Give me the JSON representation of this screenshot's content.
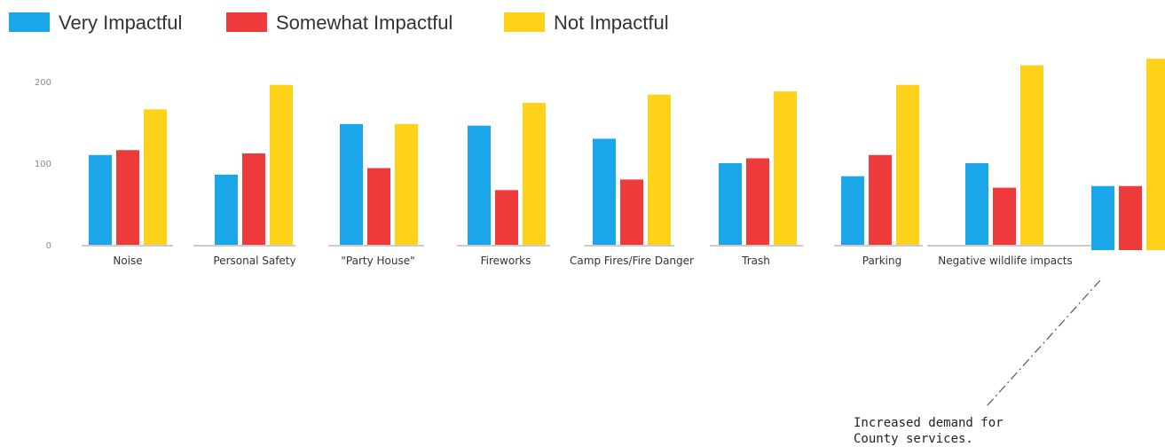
{
  "chart_data": {
    "type": "bar",
    "categories": [
      "Noise",
      "Personal Safety",
      "\"Party House\"",
      "Fireworks",
      "Camp Fires/Fire Danger",
      "Trash",
      "Parking",
      "Negative wildlife impacts",
      "Increased demand for County services."
    ],
    "series": [
      {
        "name": "Very Impactful",
        "color": "#1aa6e8",
        "values": [
          110,
          86,
          148,
          146,
          130,
          100,
          84,
          100,
          72
        ]
      },
      {
        "name": "Somewhat Impactful",
        "color": "#ee3a3a",
        "values": [
          116,
          112,
          94,
          67,
          80,
          106,
          110,
          70,
          72
        ]
      },
      {
        "name": "Not Impactful",
        "color": "#ffd21a",
        "values": [
          166,
          196,
          148,
          174,
          184,
          188,
          196,
          220,
          228
        ]
      }
    ],
    "y_ticks": [
      "0",
      "100",
      "200"
    ],
    "ylim": [
      0,
      200
    ],
    "annotation": {
      "category_index": 8,
      "lines": [
        "Increased demand for",
        "County services."
      ]
    }
  }
}
